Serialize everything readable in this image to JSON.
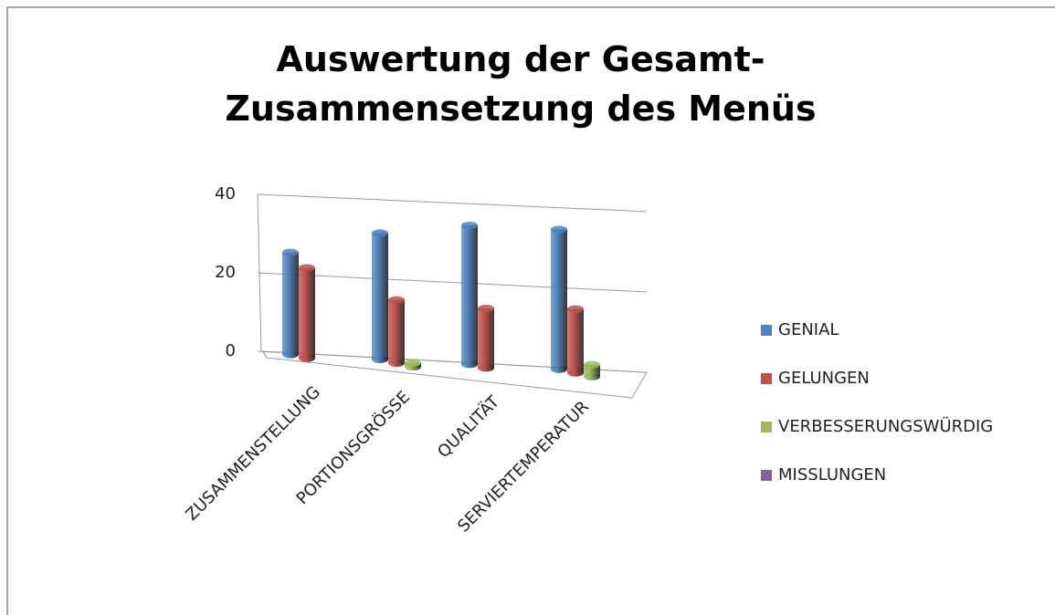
{
  "chart_data": {
    "type": "bar3d",
    "title": "Auswertung der Gesamt-Zusammensetzung des Menüs",
    "categories": [
      "ZUSAMMENSTELLUNG",
      "PORTIONSGRÖSSE",
      "QUALITÄT",
      "SERVIERTEMPERATUR"
    ],
    "series": [
      {
        "name": "GENIAL",
        "color": "#4f81bd",
        "values": [
          26,
          32,
          35,
          35
        ]
      },
      {
        "name": "GELUNGEN",
        "color": "#c0504d",
        "values": [
          23,
          16,
          15,
          16
        ]
      },
      {
        "name": "VERBESSERUNGSWÜRDIG",
        "color": "#9bbb59",
        "values": [
          0,
          1,
          0,
          3
        ]
      },
      {
        "name": "MISSLUNGEN",
        "color": "#8064a2",
        "values": [
          0,
          0,
          0,
          0
        ]
      }
    ],
    "ylim": [
      0,
      40
    ],
    "yticks": [
      0,
      20,
      40
    ],
    "grid": true,
    "legend": "right"
  }
}
